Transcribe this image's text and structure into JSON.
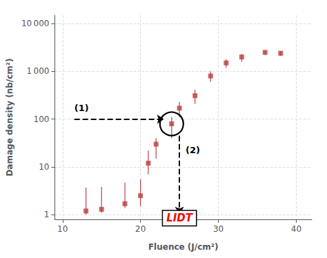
{
  "chart_data": {
    "type": "scatter",
    "x": [
      13,
      15,
      18,
      20,
      21,
      22,
      24,
      25,
      27,
      29,
      31,
      33,
      36,
      38
    ],
    "values": [
      1.2,
      1.3,
      1.7,
      2.5,
      12,
      30,
      80,
      170,
      310,
      800,
      1500,
      2000,
      2500,
      2400
    ],
    "error_low": [
      0.2,
      0.2,
      0.3,
      1.0,
      5,
      15,
      40,
      60,
      100,
      200,
      300,
      400,
      300,
      300
    ],
    "error_high": [
      2.5,
      2.5,
      3.0,
      3.0,
      10,
      10,
      30,
      60,
      100,
      200,
      300,
      300,
      200,
      250
    ],
    "color": "#b94040",
    "marker": "square",
    "xlabel": "Fluence (J/cm²)",
    "ylabel": "Damage density (nb/cm²)",
    "xlim": [
      9,
      42
    ],
    "ylim": [
      0.8,
      15000
    ],
    "xticks": [
      10,
      20,
      30,
      40
    ],
    "yticks": [
      1,
      10,
      100,
      {
        "value": 1000,
        "label": "1 000"
      },
      {
        "value": 10000,
        "label": "10 000"
      }
    ],
    "log": "y",
    "grid": true,
    "annotations": [
      {
        "text": "(1)",
        "x": 11.5,
        "y": 140,
        "arrow": {
          "from": [
            11.5,
            100
          ],
          "to": [
            23,
            100
          ]
        },
        "circle": [
          24,
          80
        ]
      },
      {
        "text": "(2)",
        "x": 25.8,
        "y": 18,
        "arrow": {
          "from": [
            25,
            45
          ],
          "to": [
            25,
            1.05
          ]
        }
      },
      {
        "text": "LIDT",
        "x": 25,
        "y": 0.85,
        "color": "red"
      }
    ]
  }
}
